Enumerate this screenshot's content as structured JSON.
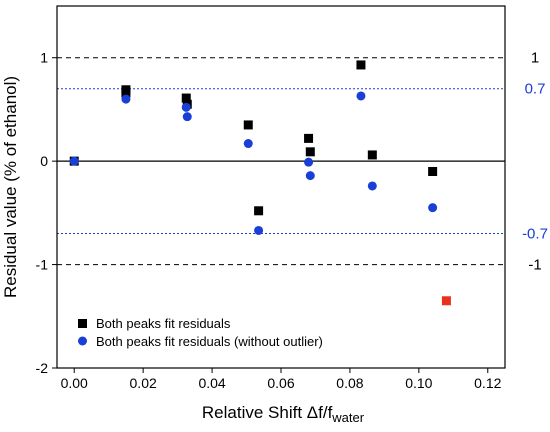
{
  "chart_data": {
    "type": "scatter",
    "xlabel_main": "Relative Shift Δf/f",
    "xlabel_sub": "water",
    "ylabel": "Residual value (% of ethanol)",
    "xlim": [
      -0.005,
      0.125
    ],
    "ylim": [
      -2,
      1.5
    ],
    "x_ticks": [
      "0.00",
      "0.02",
      "0.04",
      "0.06",
      "0.08",
      "0.10",
      "0.12"
    ],
    "x_tick_values": [
      0,
      0.02,
      0.04,
      0.06,
      0.08,
      0.1,
      0.12
    ],
    "y_ticks": [
      "-2",
      "-1",
      "0",
      "1"
    ],
    "y_tick_values": [
      -2,
      -1,
      0,
      1
    ],
    "reference_lines": [
      {
        "y": 0,
        "style": "solid",
        "color": "#000000",
        "label": ""
      },
      {
        "y": 1,
        "style": "dashed",
        "color": "#000000",
        "label": "1"
      },
      {
        "y": -1,
        "style": "dashed",
        "color": "#000000",
        "label": "-1"
      },
      {
        "y": 0.7,
        "style": "dotted",
        "color": "#1a3fd6",
        "label": "0.7"
      },
      {
        "y": -0.7,
        "style": "dotted",
        "color": "#1a3fd6",
        "label": "-0.7"
      }
    ],
    "series": [
      {
        "name": "Both peaks fit residuals",
        "marker": "square",
        "color": "#000000",
        "points": [
          [
            0.0,
            0.0
          ],
          [
            0.015,
            0.69
          ],
          [
            0.015,
            0.66
          ],
          [
            0.0325,
            0.61
          ],
          [
            0.0328,
            0.55
          ],
          [
            0.0505,
            0.35
          ],
          [
            0.0535,
            -0.48
          ],
          [
            0.068,
            0.22
          ],
          [
            0.0685,
            0.09
          ],
          [
            0.0832,
            0.93
          ],
          [
            0.0865,
            0.06
          ],
          [
            0.104,
            -0.1
          ]
        ]
      },
      {
        "name": "Both peaks fit residuals (without outlier)",
        "marker": "circle",
        "color": "#1a3fd6",
        "points": [
          [
            0.0,
            0.0
          ],
          [
            0.015,
            0.6
          ],
          [
            0.0325,
            0.52
          ],
          [
            0.0328,
            0.43
          ],
          [
            0.0505,
            0.17
          ],
          [
            0.0535,
            -0.67
          ],
          [
            0.068,
            -0.01
          ],
          [
            0.0685,
            -0.14
          ],
          [
            0.0832,
            0.63
          ],
          [
            0.0865,
            -0.24
          ],
          [
            0.104,
            -0.45
          ]
        ]
      },
      {
        "name": "",
        "marker": "square",
        "color": "#e8321e",
        "points": [
          [
            0.108,
            -1.35
          ]
        ]
      }
    ],
    "legend": {
      "placement": "bottom-left",
      "entries": [
        {
          "label": "Both peaks fit residuals",
          "marker": "square",
          "color": "#000000"
        },
        {
          "label": "Both peaks fit residuals (without outlier)",
          "marker": "circle",
          "color": "#1a3fd6"
        }
      ]
    }
  }
}
